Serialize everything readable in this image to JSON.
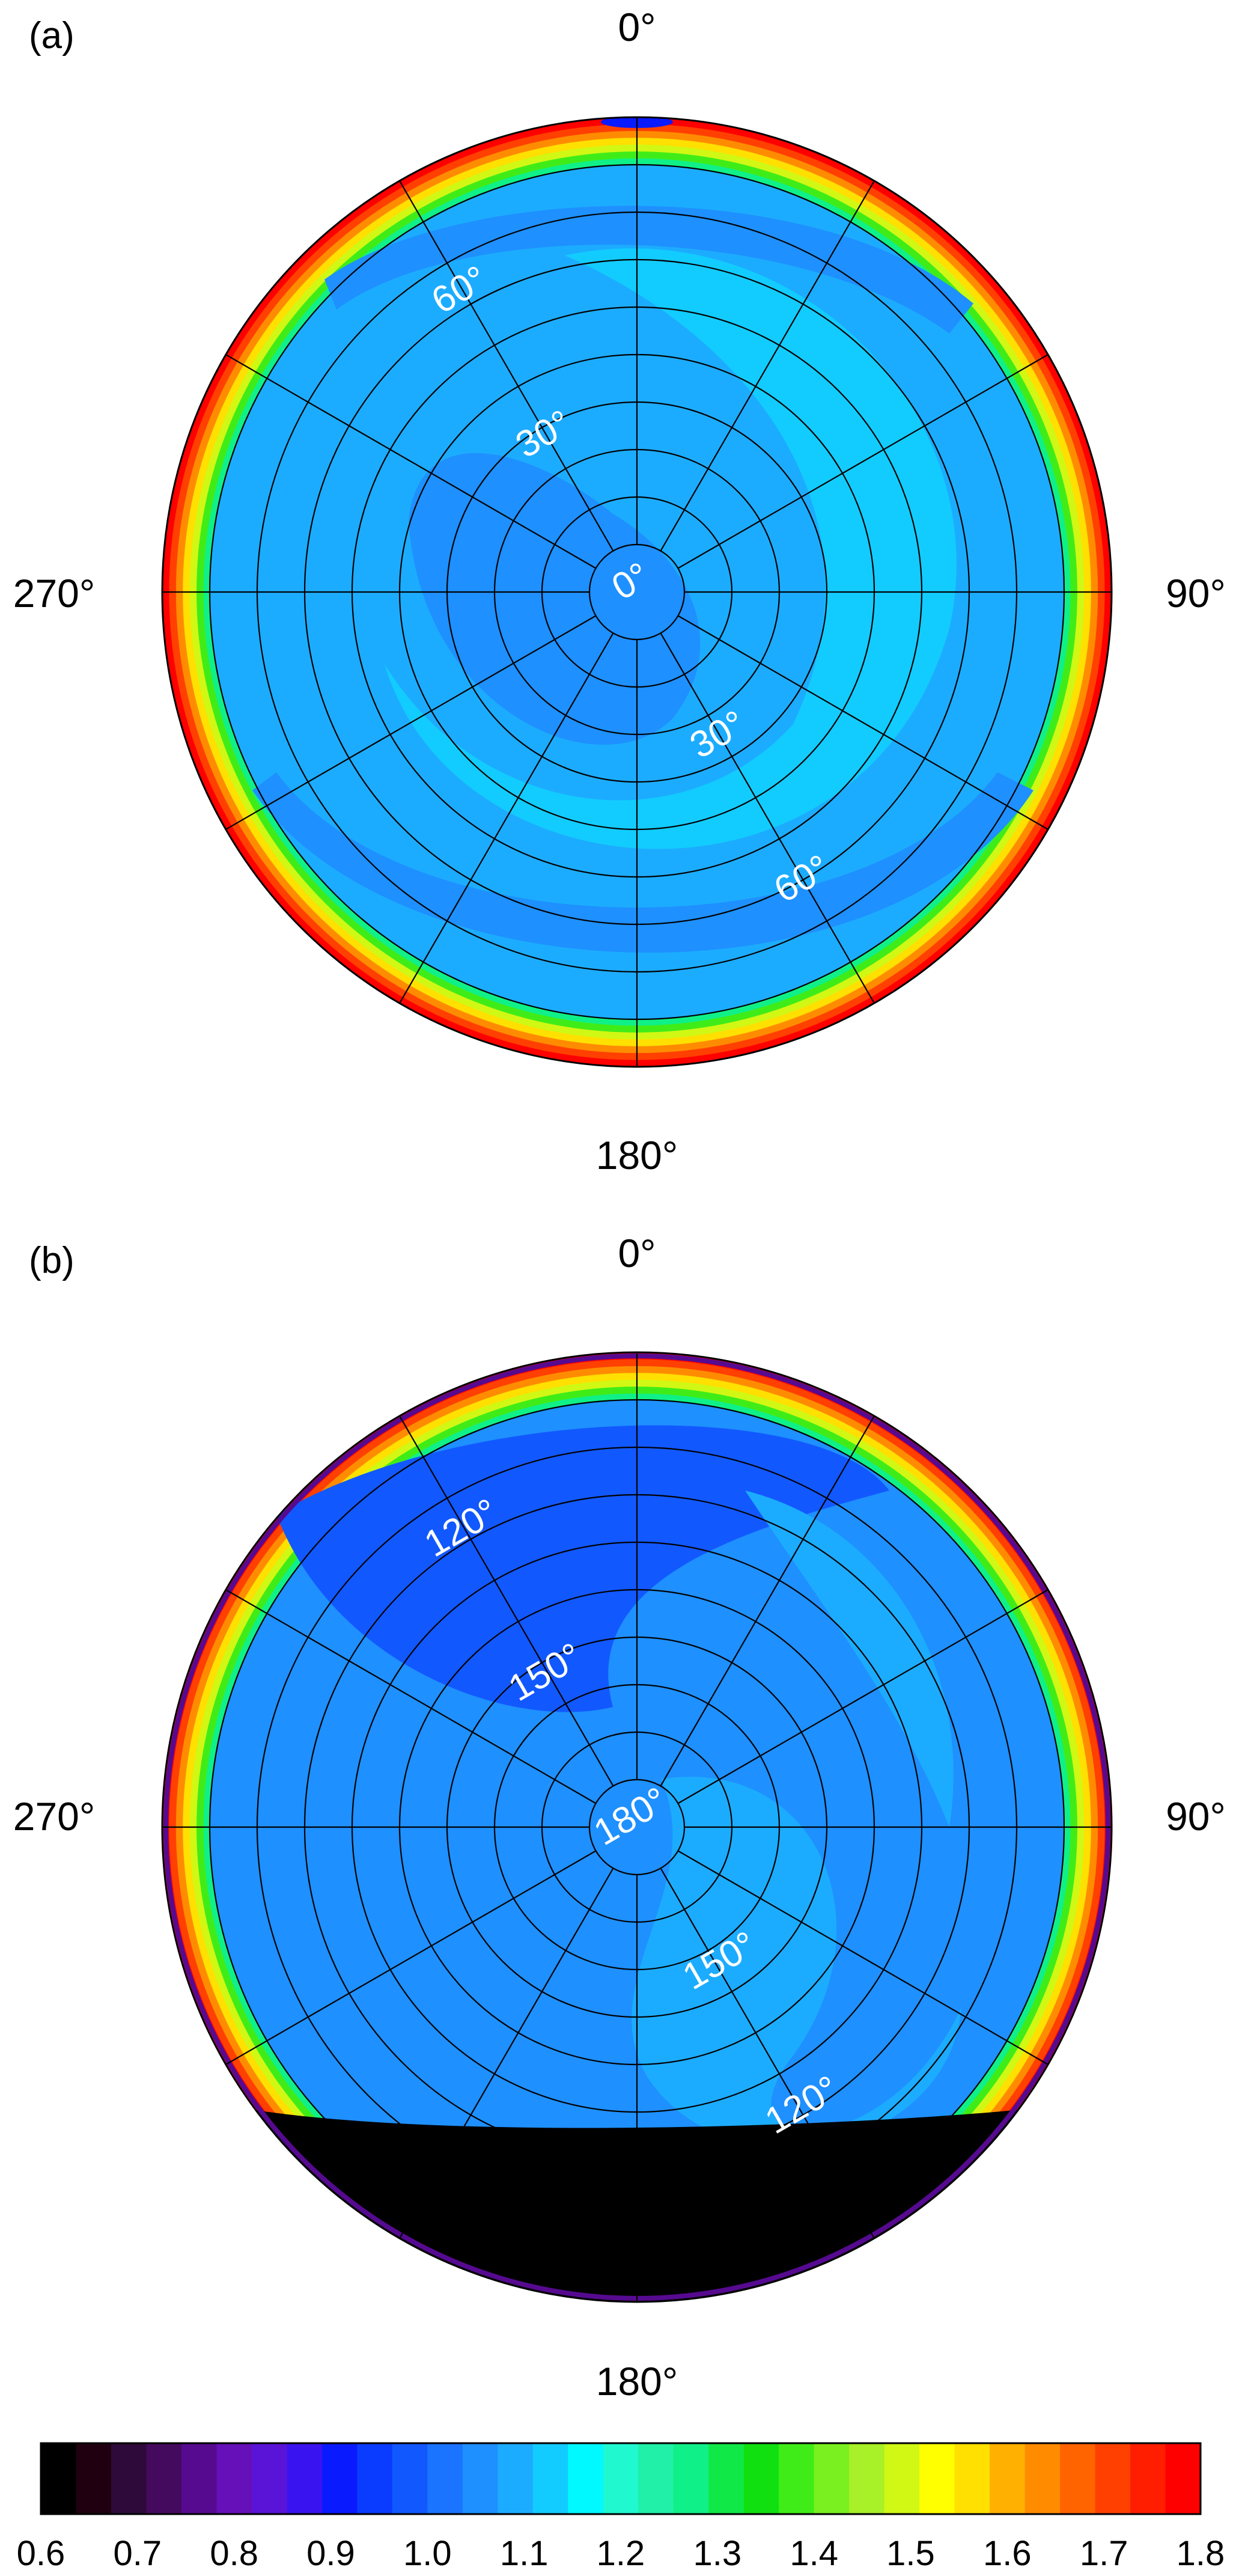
{
  "colors": {
    "contour_levels": [
      "#000000",
      "#200010",
      "#2e0a3a",
      "#440a5e",
      "#560a90",
      "#6510b8",
      "#5a14d8",
      "#3a14f0",
      "#0a1aff",
      "#0a3cff",
      "#1258ff",
      "#1a74ff",
      "#1e90ff",
      "#1cacff",
      "#12ccff",
      "#00f8ff",
      "#20f8d0",
      "#20f0a8",
      "#10f088",
      "#10e848",
      "#10e010",
      "#40ec18",
      "#7af020",
      "#a8f028",
      "#d0f814",
      "#ffff00",
      "#ffe000",
      "#ffb000",
      "#ff8c00",
      "#ff6400",
      "#ff4000",
      "#ff1e00",
      "#ff0000"
    ],
    "ring_label_color": "#ffffff"
  },
  "chart_data": [
    {
      "type": "heatmap",
      "projection": "polar",
      "panel_label": "(a)",
      "direction_labels": {
        "north": "0°",
        "east": "90°",
        "south": "180°",
        "west": "270°"
      },
      "ring_labels": {
        "upper_left": [
          "60°",
          "30°"
        ],
        "center": "0°",
        "lower_right": [
          "30°",
          "60°"
        ]
      },
      "num_rings": 10,
      "num_spokes": 12,
      "value_description": {
        "interior_mean": 1.03,
        "rim_max": 1.8,
        "min": 0.95
      },
      "grid": true
    },
    {
      "type": "heatmap",
      "projection": "polar",
      "panel_label": "(b)",
      "direction_labels": {
        "north": "0°",
        "east": "90°",
        "south": "180°",
        "west": "270°"
      },
      "ring_labels": {
        "upper_left": [
          "120°",
          "150°"
        ],
        "center": "180°",
        "lower_right": [
          "150°",
          "120°"
        ]
      },
      "num_rings": 10,
      "num_spokes": 12,
      "value_description": {
        "interior_mean": 0.98,
        "rim_max": 1.8,
        "min": 0.6
      },
      "grid": true
    },
    {
      "type": "colorbar",
      "range": [
        0.6,
        1.8
      ],
      "ticks": [
        "0.6",
        "0.7",
        "0.8",
        "0.9",
        "1.0",
        "1.1",
        "1.2",
        "1.3",
        "1.4",
        "1.5",
        "1.6",
        "1.7",
        "1.8"
      ]
    }
  ]
}
